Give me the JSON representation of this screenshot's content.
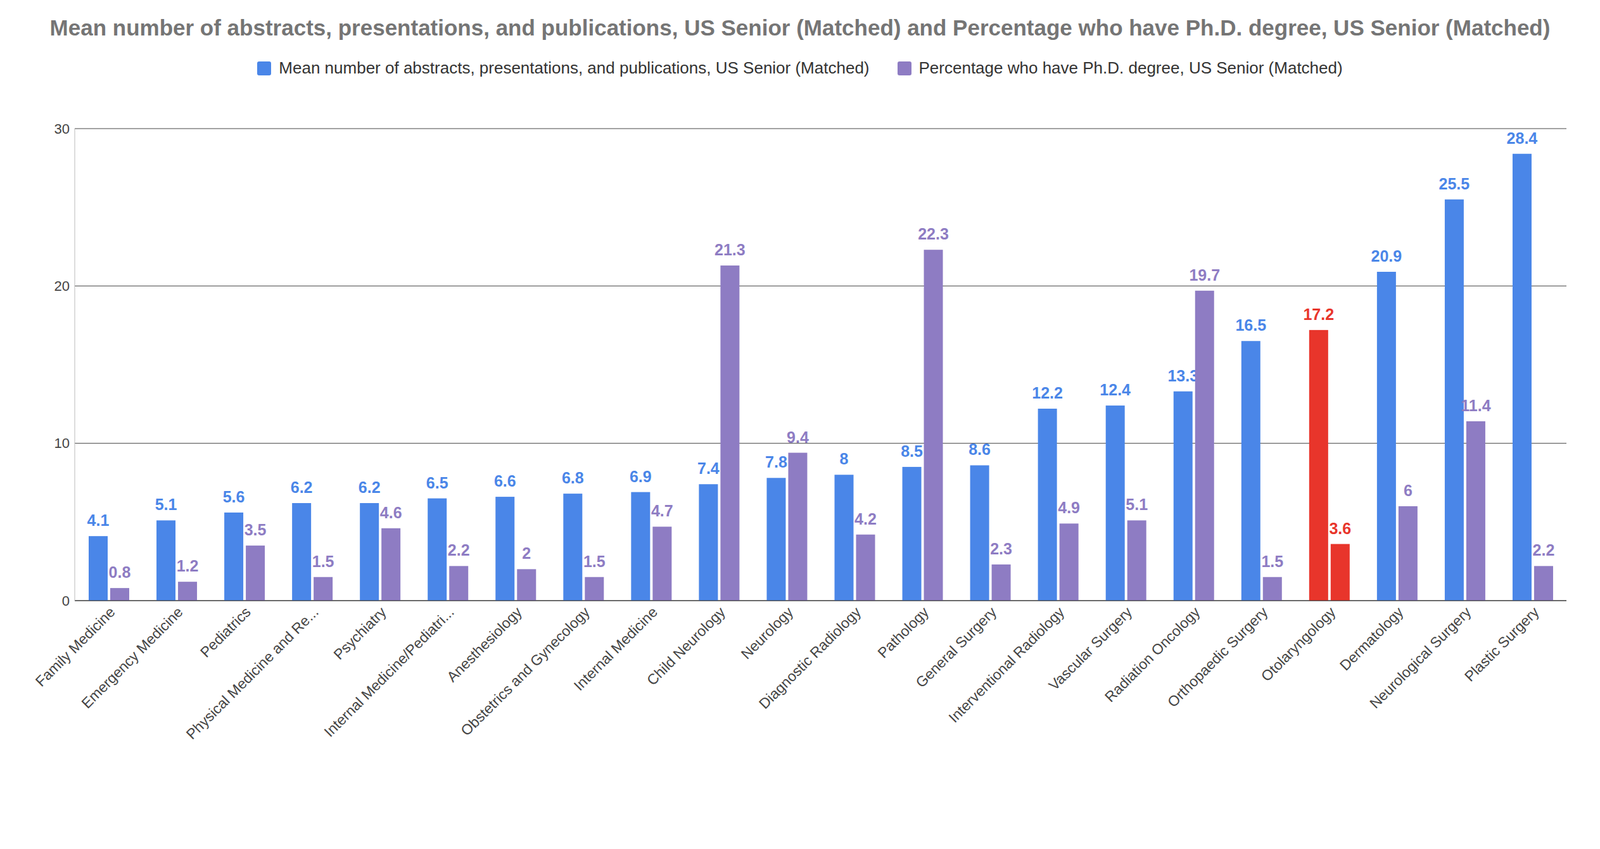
{
  "chart_data": {
    "type": "bar",
    "title": "Mean number of abstracts, presentations, and publications, US Senior (Matched) and Percentage who have Ph.D. degree, US Senior (Matched)",
    "categories": [
      "Family Medicine",
      "Emergency Medicine",
      "Pediatrics",
      "Physical Medicine and Re...",
      "Psychiatry",
      "Internal Medicine/Pediatri...",
      "Anesthesiology",
      "Obstetrics and Gynecology",
      "Internal Medicine",
      "Child Neurology",
      "Neurology",
      "Diagnostic Radiology",
      "Pathology",
      "General Surgery",
      "Interventional Radiology",
      "Vascular Surgery",
      "Radiation Oncology",
      "Orthopaedic Surgery",
      "Otolaryngology",
      "Dermatology",
      "Neurological Surgery",
      "Plastic Surgery"
    ],
    "series": [
      {
        "name": "Mean number of abstracts, presentations, and publications, US Senior (Matched)",
        "color": "#4a86e8",
        "colors": [
          "#4a86e8",
          "#4a86e8",
          "#4a86e8",
          "#4a86e8",
          "#4a86e8",
          "#4a86e8",
          "#4a86e8",
          "#4a86e8",
          "#4a86e8",
          "#4a86e8",
          "#4a86e8",
          "#4a86e8",
          "#4a86e8",
          "#4a86e8",
          "#4a86e8",
          "#4a86e8",
          "#4a86e8",
          "#4a86e8",
          "#e8352b",
          "#4a86e8",
          "#4a86e8",
          "#4a86e8"
        ],
        "values": [
          4.1,
          5.1,
          5.6,
          6.2,
          6.2,
          6.5,
          6.6,
          6.8,
          6.9,
          7.4,
          7.8,
          8,
          8.5,
          8.6,
          12.2,
          12.4,
          13.3,
          16.5,
          17.2,
          20.9,
          25.5,
          28.4
        ]
      },
      {
        "name": "Percentage who have Ph.D. degree, US Senior (Matched)",
        "color": "#8e7cc3",
        "colors": [
          "#8e7cc3",
          "#8e7cc3",
          "#8e7cc3",
          "#8e7cc3",
          "#8e7cc3",
          "#8e7cc3",
          "#8e7cc3",
          "#8e7cc3",
          "#8e7cc3",
          "#8e7cc3",
          "#8e7cc3",
          "#8e7cc3",
          "#8e7cc3",
          "#8e7cc3",
          "#8e7cc3",
          "#8e7cc3",
          "#8e7cc3",
          "#8e7cc3",
          "#e8352b",
          "#8e7cc3",
          "#8e7cc3",
          "#8e7cc3"
        ],
        "values": [
          0.8,
          1.2,
          3.5,
          1.5,
          4.6,
          2.2,
          2,
          1.5,
          4.7,
          21.3,
          9.4,
          4.2,
          22.3,
          2.3,
          4.9,
          5.1,
          19.7,
          1.5,
          3.6,
          6,
          11.4,
          2.2
        ]
      }
    ],
    "ylim": [
      0,
      30
    ],
    "yticks": [
      0,
      10,
      20,
      30
    ],
    "grid": true,
    "legend": "top",
    "data_labels": true
  }
}
